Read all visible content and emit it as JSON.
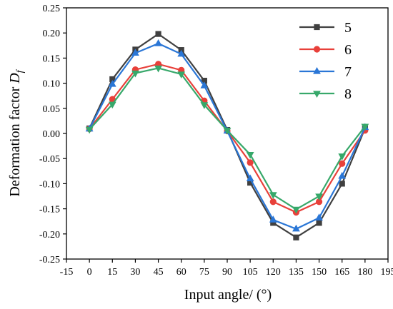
{
  "chart_data": {
    "type": "line",
    "title": "",
    "xlabel": "Input angle/ (°)",
    "ylabel_main": "Deformation factor ",
    "ylabel_symbol": "D",
    "ylabel_subscript": "f",
    "xlim": [
      -15,
      195
    ],
    "ylim": [
      -0.25,
      0.25
    ],
    "x_ticks": [
      "-15",
      "0",
      "15",
      "30",
      "45",
      "60",
      "75",
      "90",
      "105",
      "120",
      "135",
      "150",
      "165",
      "180",
      "195"
    ],
    "y_ticks": [
      "0.25",
      "0.20",
      "0.15",
      "0.10",
      "0.05",
      "0.00",
      "-0.05",
      "-0.10",
      "-0.15",
      "-0.20",
      "-0.25"
    ],
    "grid": false,
    "legend_position": "top-right",
    "x": [
      0,
      15,
      30,
      45,
      60,
      75,
      90,
      105,
      120,
      135,
      150,
      165,
      180
    ],
    "series": [
      {
        "name": "5",
        "color": "#404040",
        "marker": "square",
        "values": [
          0.01,
          0.108,
          0.167,
          0.198,
          0.166,
          0.105,
          0.007,
          -0.098,
          -0.178,
          -0.207,
          -0.178,
          -0.1,
          0.01
        ]
      },
      {
        "name": "6",
        "color": "#e8403a",
        "marker": "circle",
        "values": [
          0.009,
          0.068,
          0.127,
          0.138,
          0.126,
          0.065,
          0.005,
          -0.058,
          -0.136,
          -0.157,
          -0.136,
          -0.06,
          0.006
        ]
      },
      {
        "name": "7",
        "color": "#2a76d6",
        "marker": "triangle-up",
        "values": [
          0.009,
          0.098,
          0.16,
          0.179,
          0.158,
          0.095,
          0.005,
          -0.09,
          -0.172,
          -0.19,
          -0.168,
          -0.085,
          0.012
        ]
      },
      {
        "name": "8",
        "color": "#37a86a",
        "marker": "triangle-down",
        "values": [
          0.008,
          0.058,
          0.12,
          0.13,
          0.118,
          0.057,
          0.006,
          -0.042,
          -0.122,
          -0.151,
          -0.125,
          -0.045,
          0.014
        ]
      }
    ]
  }
}
